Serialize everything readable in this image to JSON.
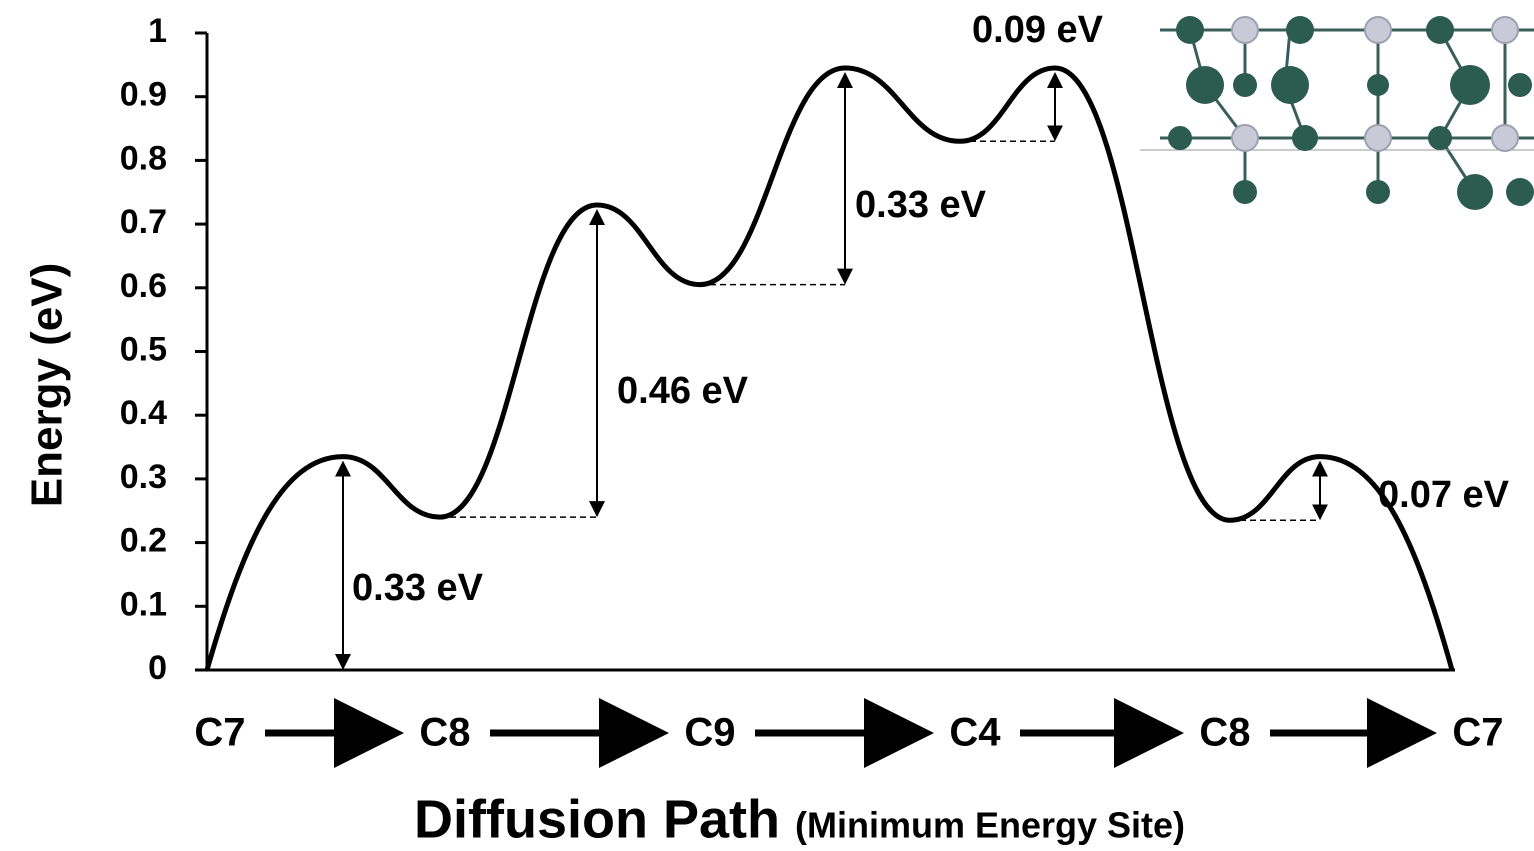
{
  "chart_data": {
    "type": "line",
    "y_label": "Energy (eV)",
    "x_label": "Diffusion Path",
    "x_label_note": "(Minimum Energy Site)",
    "categories": [
      "C7",
      null,
      "C8",
      null,
      "C9",
      null,
      "C4",
      null,
      "C8",
      null,
      "C7"
    ],
    "values": [
      0,
      0.335,
      0.24,
      0.73,
      0.605,
      0.945,
      0.83,
      0.945,
      0.235,
      0.335,
      0
    ],
    "color": "#000000",
    "ylim": [
      0,
      1
    ],
    "yticks": [
      0,
      0.1,
      0.2,
      0.3,
      0.4,
      0.5,
      0.6,
      0.7,
      0.8,
      0.9,
      1
    ],
    "annotations": [
      "0.33 eV",
      "0.46 eV",
      "0.33 eV",
      "0.09 eV",
      "0.07 eV"
    ]
  }
}
